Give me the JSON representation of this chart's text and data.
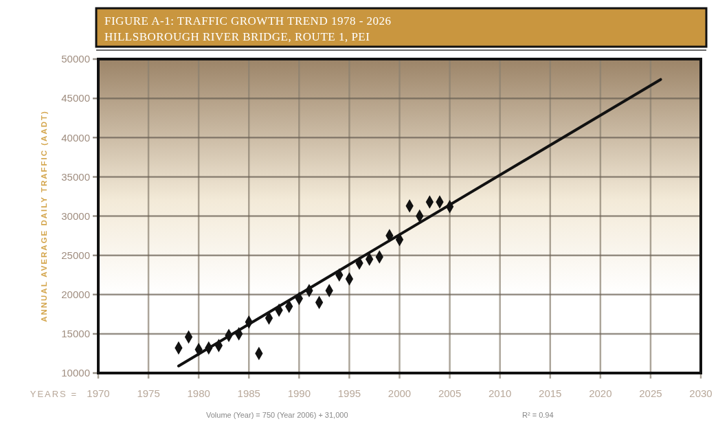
{
  "chart_data": {
    "type": "scatter",
    "title": "FIGURE A-1: TRAFFIC GROWTH TREND 1978 - 2026",
    "subtitle": "HILLSBOROUGH RIVER BRIDGE, ROUTE 1, PEI",
    "xlabel": "YEARS =",
    "ylabel": "ANNUAL AVERAGE DAILY TRAFFIC (AADT)",
    "series": [
      {
        "marker": "diamond",
        "color": "#111111",
        "x": [
          1978,
          1979,
          1980,
          1981,
          1982,
          1983,
          1984,
          1985,
          1986,
          1987,
          1988,
          1989,
          1990,
          1991,
          1992,
          1993,
          1994,
          1995,
          1996,
          1997,
          1998,
          1999,
          2000,
          2001,
          2002,
          2003,
          2004,
          2005
        ],
        "values": [
          13200,
          14600,
          13000,
          13200,
          13500,
          14800,
          15000,
          16500,
          12500,
          17000,
          18000,
          18500,
          19500,
          20500,
          19000,
          20500,
          22500,
          22000,
          24000,
          24500,
          24800,
          27500,
          27000,
          31300,
          30000,
          31800,
          31800,
          31200
        ]
      },
      {
        "type": "line",
        "color": "#111111",
        "x": [
          1978,
          2026
        ],
        "values": [
          10900,
          47400
        ]
      }
    ],
    "xlim": [
      1970,
      2030
    ],
    "xticks": [
      1970,
      1975,
      1980,
      1985,
      1990,
      1995,
      2000,
      2005,
      2010,
      2015,
      2020,
      2025,
      2030
    ],
    "ylim": [
      10000,
      50000
    ],
    "yticks": [
      10000,
      15000,
      20000,
      25000,
      30000,
      35000,
      40000,
      45000,
      50000
    ],
    "grid": true,
    "annotations": [
      "Volume (Year) = 750 (Year 2006) + 31,000",
      "R² = 0.94"
    ]
  }
}
